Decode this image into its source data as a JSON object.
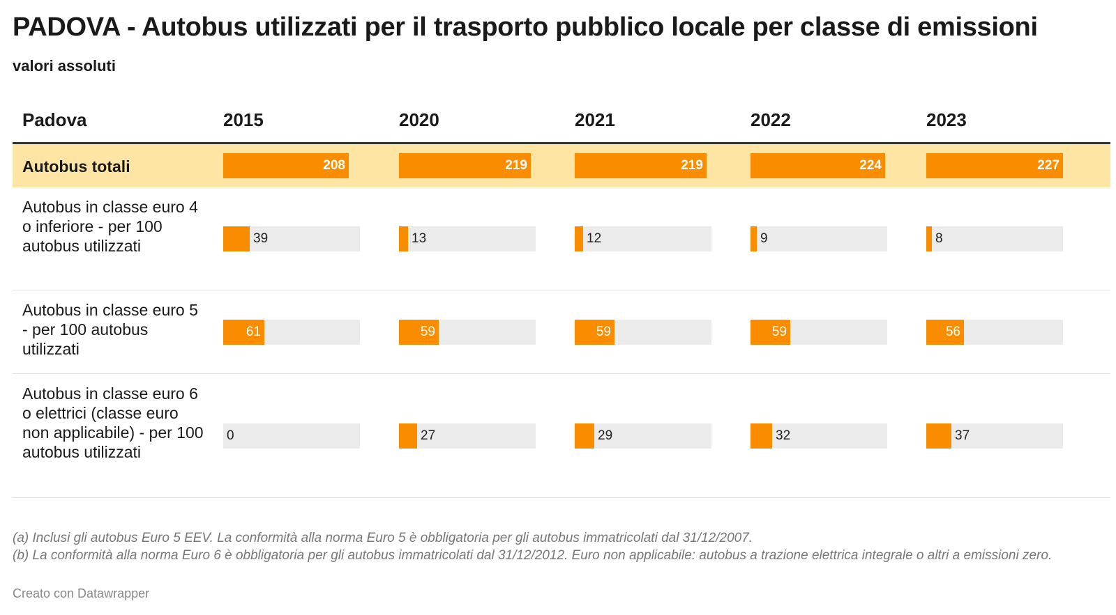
{
  "title": "PADOVA - Autobus utilizzati per il trasporto pubblico locale per classe di emissioni",
  "subtitle": "valori assoluti",
  "table": {
    "header_label": "Padova",
    "years": [
      "2015",
      "2020",
      "2021",
      "2022",
      "2023"
    ]
  },
  "chart_data": {
    "type": "table",
    "title": "PADOVA - Autobus utilizzati per il trasporto pubblico locale per classe di emissioni",
    "subtitle": "valori assoluti",
    "categories": [
      "2015",
      "2020",
      "2021",
      "2022",
      "2023"
    ],
    "rows": [
      {
        "label": "Autobus totali",
        "values": [
          208,
          219,
          219,
          224,
          227
        ],
        "scale_max": 227,
        "highlight": true
      },
      {
        "label": "Autobus in classe euro 4 o inferiore - per 100 autobus utilizzati",
        "values": [
          39,
          13,
          12,
          9,
          8
        ],
        "scale_max": 203
      },
      {
        "label": "Autobus in classe euro 5 - per 100 autobus utilizzati",
        "values": [
          61,
          59,
          59,
          59,
          56
        ],
        "scale_max": 203
      },
      {
        "label": "Autobus in classe euro 6 o elettrici (classe euro non applicabile) - per 100 autobus utilizzati",
        "values": [
          0,
          27,
          29,
          32,
          37
        ],
        "scale_max": 203
      }
    ]
  },
  "notes": {
    "line_a": "(a) Inclusi gli autobus Euro 5 EEV. La conformità alla norma Euro 5 è obbligatoria per gli autobus immatricolati dal 31/12/2007.",
    "line_b": "(b) La conformità alla norma Euro 6 è obbligatoria per gli autobus immatricolati dal 31/12/2012. Euro non applicabile: autobus a trazione elettrica integrale o altri a emissioni zero."
  },
  "credit": "Creato con Datawrapper",
  "colors": {
    "bar": "#fa8c00",
    "track": "#ebebeb",
    "highlight_row": "#fee5a4"
  }
}
